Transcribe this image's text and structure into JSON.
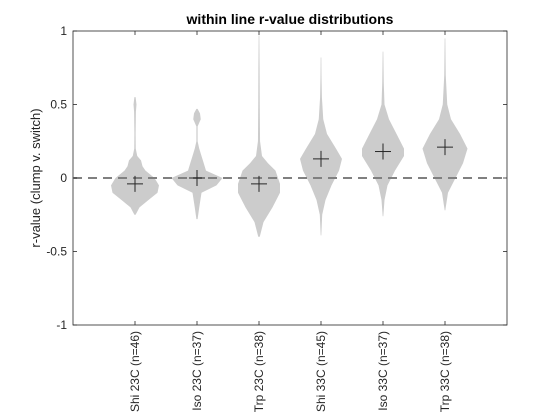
{
  "chart_data": {
    "type": "violin",
    "title": "within line r-value distributions",
    "xlabel": "",
    "ylabel": "r-value (clump v. switch)",
    "ylim": [
      -1,
      1
    ],
    "yticks": [
      -1,
      -0.5,
      0,
      0.5,
      1
    ],
    "ytick_labels": [
      "-1",
      "-0.5",
      "0",
      "0.5",
      "1"
    ],
    "grid": false,
    "legend": "none",
    "reference_line": {
      "y": 0,
      "style": "dashed",
      "color": "#808080"
    },
    "violin_color": "#cccccc",
    "categories": [
      "Shi 23C (n=46)",
      "Iso 23C (n=37)",
      "Trp 23C (n=38)",
      "Shi 33C (n=45)",
      "Iso 33C (n=37)",
      "Trp 33C (n=38)"
    ],
    "series": [
      {
        "label": "Shi 23C (n=46)",
        "mean": -0.04,
        "min": -0.25,
        "max": 0.55,
        "density": [
          [
            -0.25,
            0.004
          ],
          [
            -0.2,
            0.03
          ],
          [
            -0.15,
            0.09
          ],
          [
            -0.1,
            0.15
          ],
          [
            -0.05,
            0.16
          ],
          [
            0.0,
            0.13
          ],
          [
            0.05,
            0.07
          ],
          [
            0.08,
            0.05
          ],
          [
            0.12,
            0.04
          ],
          [
            0.15,
            0.015
          ],
          [
            0.2,
            0.005
          ],
          [
            0.3,
            0.004
          ],
          [
            0.45,
            0.006
          ],
          [
            0.5,
            0.01
          ],
          [
            0.55,
            0.004
          ]
        ]
      },
      {
        "label": "Iso 23C (n=37)",
        "mean": 0.0,
        "min": -0.28,
        "max": 0.47,
        "density": [
          [
            -0.28,
            0.004
          ],
          [
            -0.2,
            0.015
          ],
          [
            -0.1,
            0.03
          ],
          [
            -0.05,
            0.13
          ],
          [
            0.0,
            0.17
          ],
          [
            0.05,
            0.06
          ],
          [
            0.1,
            0.045
          ],
          [
            0.15,
            0.03
          ],
          [
            0.2,
            0.015
          ],
          [
            0.25,
            0.004
          ],
          [
            0.35,
            0.004
          ],
          [
            0.4,
            0.025
          ],
          [
            0.44,
            0.02
          ],
          [
            0.47,
            0.004
          ]
        ]
      },
      {
        "label": "Trp 23C (n=38)",
        "mean": -0.04,
        "min": -0.4,
        "max": 0.97,
        "density": [
          [
            -0.4,
            0.005
          ],
          [
            -0.3,
            0.03
          ],
          [
            -0.2,
            0.09
          ],
          [
            -0.1,
            0.14
          ],
          [
            -0.04,
            0.14
          ],
          [
            0.05,
            0.11
          ],
          [
            0.1,
            0.06
          ],
          [
            0.15,
            0.02
          ],
          [
            0.25,
            0.007
          ],
          [
            0.5,
            0.005
          ],
          [
            0.75,
            0.004
          ],
          [
            0.97,
            0.002
          ]
        ]
      },
      {
        "label": "Shi 33C (n=45)",
        "mean": 0.13,
        "min": -0.39,
        "max": 0.82,
        "density": [
          [
            -0.39,
            0.002
          ],
          [
            -0.25,
            0.008
          ],
          [
            -0.15,
            0.03
          ],
          [
            -0.05,
            0.07
          ],
          [
            0.05,
            0.12
          ],
          [
            0.13,
            0.14
          ],
          [
            0.2,
            0.1
          ],
          [
            0.3,
            0.04
          ],
          [
            0.4,
            0.015
          ],
          [
            0.55,
            0.006
          ],
          [
            0.7,
            0.003
          ],
          [
            0.82,
            0.002
          ]
        ]
      },
      {
        "label": "Iso 33C (n=37)",
        "mean": 0.18,
        "min": -0.26,
        "max": 0.86,
        "density": [
          [
            -0.26,
            0.002
          ],
          [
            -0.15,
            0.01
          ],
          [
            -0.05,
            0.03
          ],
          [
            0.05,
            0.08
          ],
          [
            0.15,
            0.14
          ],
          [
            0.2,
            0.14
          ],
          [
            0.3,
            0.09
          ],
          [
            0.4,
            0.04
          ],
          [
            0.5,
            0.01
          ],
          [
            0.65,
            0.005
          ],
          [
            0.86,
            0.002
          ]
        ]
      },
      {
        "label": "Trp 33C (n=38)",
        "mean": 0.21,
        "min": -0.22,
        "max": 0.95,
        "density": [
          [
            -0.22,
            0.002
          ],
          [
            -0.1,
            0.02
          ],
          [
            0.0,
            0.07
          ],
          [
            0.1,
            0.12
          ],
          [
            0.2,
            0.15
          ],
          [
            0.3,
            0.1
          ],
          [
            0.4,
            0.04
          ],
          [
            0.5,
            0.015
          ],
          [
            0.7,
            0.005
          ],
          [
            0.95,
            0.002
          ]
        ]
      }
    ]
  }
}
